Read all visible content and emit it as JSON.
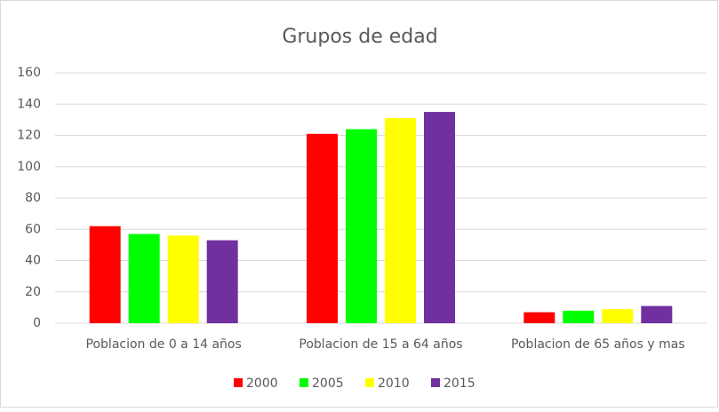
{
  "chart_data": {
    "type": "bar",
    "title": "Grupos de edad",
    "categories": [
      "Poblacion de 0 a 14 años",
      "Poblacion de 15 a 64 años",
      "Poblacion de 65 años y mas"
    ],
    "series": [
      {
        "name": "2000",
        "color": "#ff0000",
        "values": [
          62,
          121,
          7
        ]
      },
      {
        "name": "2005",
        "color": "#00ff00",
        "values": [
          57,
          124,
          8
        ]
      },
      {
        "name": "2010",
        "color": "#ffff00",
        "values": [
          56,
          131,
          9
        ]
      },
      {
        "name": "2015",
        "color": "#7030a0",
        "values": [
          53,
          135,
          11
        ]
      }
    ],
    "ylim": [
      0,
      160
    ],
    "yticks": [
      0,
      20,
      40,
      60,
      80,
      100,
      120,
      140,
      160
    ],
    "grid": true,
    "legend": "bottom"
  }
}
